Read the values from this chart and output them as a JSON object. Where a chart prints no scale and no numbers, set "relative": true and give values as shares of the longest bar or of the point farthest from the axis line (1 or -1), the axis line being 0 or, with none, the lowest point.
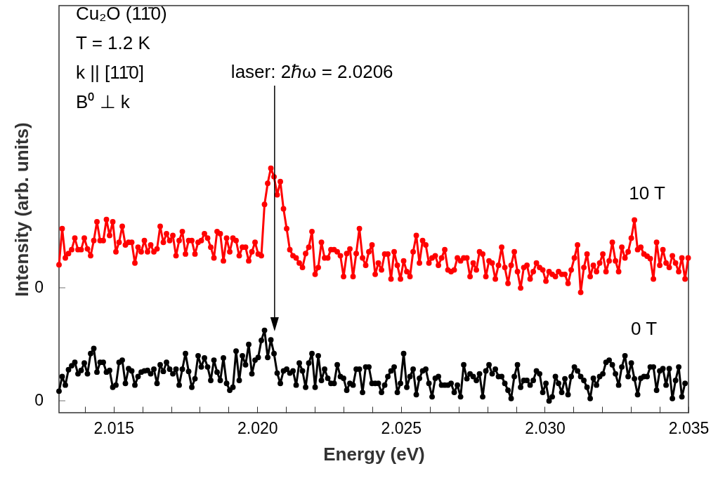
{
  "chart_data": {
    "type": "line",
    "xlabel": "Energy (eV)",
    "ylabel": "Intensity (arb. units)",
    "marker": "circle",
    "relative": true,
    "annotations": [
      "Cu₂O (11̄0)",
      "T = 1.2 K",
      "k || [11̄0]",
      "B⁰ ⊥ k",
      "0",
      "0"
    ],
    "ref_lines": [
      {
        "axis": "x",
        "value": 2.0206,
        "label": "laser: 2ℏω = 2.0206",
        "color": "#000000"
      }
    ],
    "xlim": [
      2.0131,
      2.035
    ],
    "xticks": [
      {
        "value": 2.014,
        "label": null
      },
      2.015,
      {
        "value": 2.016,
        "label": null
      },
      {
        "value": 2.017,
        "label": null
      },
      {
        "value": 2.018,
        "label": null
      },
      {
        "value": 2.019,
        "label": null
      },
      {
        "value": 2.02,
        "label": "2.020"
      },
      {
        "value": 2.021,
        "label": null
      },
      {
        "value": 2.022,
        "label": null
      },
      {
        "value": 2.023,
        "label": null
      },
      {
        "value": 2.024,
        "label": null
      },
      2.025,
      {
        "value": 2.026,
        "label": null
      },
      {
        "value": 2.027,
        "label": null
      },
      {
        "value": 2.028,
        "label": null
      },
      {
        "value": 2.029,
        "label": null
      },
      {
        "value": 2.03,
        "label": "2.030"
      },
      {
        "value": 2.031,
        "label": null
      },
      {
        "value": 2.032,
        "label": null
      },
      {
        "value": 2.033,
        "label": null
      },
      {
        "value": 2.034,
        "label": null
      },
      2.035
    ],
    "x": [
      2.0131,
      2.01321,
      2.01332,
      2.01343,
      2.01354,
      2.01365,
      2.01376,
      2.01387,
      2.01398,
      2.01409,
      2.0142,
      2.01431,
      2.01442,
      2.01453,
      2.01464,
      2.01475,
      2.01486,
      2.01497,
      2.01508,
      2.01519,
      2.0153,
      2.01541,
      2.01552,
      2.01563,
      2.01574,
      2.01585,
      2.01596,
      2.01607,
      2.01618,
      2.01629,
      2.0164,
      2.01651,
      2.01662,
      2.01673,
      2.01684,
      2.01695,
      2.01706,
      2.01717,
      2.01728,
      2.01739,
      2.0175,
      2.01761,
      2.01772,
      2.01783,
      2.01794,
      2.01805,
      2.01816,
      2.01827,
      2.01838,
      2.01849,
      2.0186,
      2.01871,
      2.01882,
      2.01893,
      2.01904,
      2.01915,
      2.01926,
      2.01937,
      2.01948,
      2.01959,
      2.0197,
      2.01981,
      2.01992,
      2.02003,
      2.02014,
      2.02025,
      2.02036,
      2.02047,
      2.02058,
      2.02069,
      2.0208,
      2.02091,
      2.02102,
      2.02113,
      2.02124,
      2.02135,
      2.02146,
      2.02157,
      2.02168,
      2.02179,
      2.0219,
      2.02201,
      2.02212,
      2.02223,
      2.02234,
      2.02245,
      2.02256,
      2.02267,
      2.02278,
      2.02289,
      2.023,
      2.02311,
      2.02322,
      2.02333,
      2.02344,
      2.02355,
      2.02366,
      2.02377,
      2.02388,
      2.02399,
      2.0241,
      2.02421,
      2.02432,
      2.02443,
      2.02454,
      2.02465,
      2.02476,
      2.02487,
      2.02498,
      2.02509,
      2.0252,
      2.02531,
      2.02542,
      2.02553,
      2.02564,
      2.02575,
      2.02586,
      2.02597,
      2.02608,
      2.02619,
      2.0263,
      2.02641,
      2.02652,
      2.02663,
      2.02674,
      2.02685,
      2.02696,
      2.02707,
      2.02718,
      2.02729,
      2.0274,
      2.02751,
      2.02762,
      2.02773,
      2.02784,
      2.02795,
      2.02806,
      2.02817,
      2.02828,
      2.02839,
      2.0285,
      2.02861,
      2.02872,
      2.02883,
      2.02894,
      2.02905,
      2.02916,
      2.02927,
      2.02938,
      2.02949,
      2.0296,
      2.02971,
      2.02982,
      2.02993,
      2.03004,
      2.03015,
      2.03026,
      2.03037,
      2.03048,
      2.03059,
      2.0307,
      2.03081,
      2.03092,
      2.03103,
      2.03114,
      2.03125,
      2.03136,
      2.03147,
      2.03158,
      2.03169,
      2.0318,
      2.03191,
      2.03202,
      2.03213,
      2.03224,
      2.03235,
      2.03246,
      2.03257,
      2.03268,
      2.03279,
      2.0329,
      2.03301,
      2.03312,
      2.03323,
      2.03334,
      2.03345,
      2.03356,
      2.03367,
      2.03378,
      2.03389,
      2.034,
      2.03411,
      2.03422,
      2.03433,
      2.03444,
      2.03455,
      2.03466,
      2.03477,
      2.03488,
      2.03499
    ],
    "series": [
      {
        "name": "10 T",
        "color": "#ff0000",
        "values": [
          0.605,
          0.753,
          0.633,
          0.651,
          0.667,
          0.714,
          0.667,
          0.667,
          0.714,
          0.67,
          0.642,
          0.704,
          0.781,
          0.704,
          0.704,
          0.79,
          0.725,
          0.781,
          0.658,
          0.697,
          0.762,
          0.686,
          0.697,
          0.697,
          0.612,
          0.677,
          0.658,
          0.704,
          0.658,
          0.686,
          0.658,
          0.67,
          0.762,
          0.697,
          0.732,
          0.704,
          0.725,
          0.642,
          0.704,
          0.741,
          0.649,
          0.704,
          0.704,
          0.649,
          0.697,
          0.704,
          0.732,
          0.714,
          0.677,
          0.633,
          0.741,
          0.732,
          0.621,
          0.714,
          0.658,
          0.714,
          0.704,
          0.642,
          0.677,
          0.677,
          0.621,
          0.658,
          0.697,
          0.649,
          0.642,
          0.852,
          0.938,
          1,
          0.965,
          0.891,
          0.945,
          0.834,
          0.753,
          0.667,
          0.642,
          0.633,
          0.612,
          0.594,
          0.651,
          0.677,
          0.741,
          0.566,
          0.594,
          0.697,
          0.633,
          0.633,
          0.667,
          0.667,
          0.658,
          0.642,
          0.557,
          0.651,
          0.67,
          0.557,
          0.651,
          0.753,
          0.633,
          0.603,
          0.658,
          0.686,
          0.566,
          0.612,
          0.584,
          0.649,
          0.649,
          0.547,
          0.658,
          0.603,
          0.547,
          0.621,
          0.577,
          0.557,
          0.658,
          0.725,
          0.612,
          0.704,
          0.686,
          0.612,
          0.633,
          0.642,
          0.603,
          0.633,
          0.667,
          0.584,
          0.577,
          0.584,
          0.633,
          0.621,
          0.633,
          0.633,
          0.557,
          0.612,
          0.584,
          0.658,
          0.649,
          0.557,
          0.621,
          0.612,
          0.547,
          0.603,
          0.677,
          0.594,
          0.529,
          0.603,
          0.658,
          0.577,
          0.51,
          0.594,
          0.603,
          0.547,
          0.577,
          0.612,
          0.594,
          0.584,
          0.538,
          0.577,
          0.566,
          0.557,
          0.577,
          0.566,
          0.566,
          0.529,
          0.584,
          0.633,
          0.686,
          0.492,
          0.594,
          0.649,
          0.557,
          0.603,
          0.577,
          0.612,
          0.649,
          0.577,
          0.621,
          0.697,
          0.621,
          0.577,
          0.677,
          0.633,
          0.658,
          0.714,
          0.788,
          0.667,
          0.677,
          0.649,
          0.64,
          0.63,
          0.547,
          0.697,
          0.603,
          0.667,
          0.612,
          0.594,
          0.642,
          0.612,
          0.577,
          0.633,
          0.547,
          0.633
        ]
      },
      {
        "name": "0 T",
        "color": "#000000",
        "x": [
          2.0131,
          2.01321,
          2.01332,
          2.01343,
          2.01354,
          2.01365,
          2.01376,
          2.01387,
          2.01398,
          2.01409,
          2.0142,
          2.01431,
          2.01442,
          2.01453,
          2.01464,
          2.01475,
          2.01486,
          2.01497,
          2.01508,
          2.01519,
          2.0153,
          2.01541,
          2.01552,
          2.01563,
          2.01574,
          2.01585,
          2.01596,
          2.01607,
          2.01618,
          2.01629,
          2.0164,
          2.01651,
          2.01662,
          2.01673,
          2.01684,
          2.01695,
          2.01706,
          2.01717,
          2.01728,
          2.01739,
          2.0175,
          2.01761,
          2.01772,
          2.01783,
          2.01794,
          2.01805,
          2.01816,
          2.01827,
          2.01838,
          2.01849,
          2.0186,
          2.01871,
          2.01882,
          2.01893,
          2.01904,
          2.01915,
          2.01926,
          2.01937,
          2.01948,
          2.01959,
          2.0197,
          2.01981,
          2.01992,
          2.02003,
          2.02014,
          2.02025,
          2.02036,
          2.02047,
          2.02058,
          2.02069,
          2.0208,
          2.02091,
          2.02102,
          2.02113,
          2.02124,
          2.02135,
          2.02146,
          2.02157,
          2.02168,
          2.02179,
          2.0219,
          2.02201,
          2.02212,
          2.02223,
          2.02234,
          2.02245,
          2.02256,
          2.02267,
          2.02278,
          2.02289,
          2.023,
          2.02311,
          2.02322,
          2.02333,
          2.02344,
          2.02355,
          2.02366,
          2.02377,
          2.02388,
          2.02399,
          2.0241,
          2.02421,
          2.02432,
          2.02443,
          2.02454,
          2.02465,
          2.02476,
          2.02487,
          2.02498,
          2.02509,
          2.0252,
          2.02531,
          2.02542,
          2.02553,
          2.02564,
          2.02575,
          2.02586,
          2.02597,
          2.02608,
          2.02619,
          2.0263,
          2.02641,
          2.02652,
          2.02663,
          2.02674,
          2.02685,
          2.02696,
          2.02707,
          2.02718,
          2.02729,
          2.0274,
          2.02751,
          2.02762,
          2.02773,
          2.02784,
          2.02795,
          2.02806,
          2.02817,
          2.02828,
          2.02839,
          2.0285,
          2.02861,
          2.02872,
          2.02883,
          2.02894,
          2.02905,
          2.02916,
          2.02927,
          2.02938,
          2.02949,
          2.0296,
          2.02971,
          2.02982,
          2.02993,
          2.03004,
          2.03015,
          2.03026,
          2.03037,
          2.03048,
          2.03059,
          2.0307,
          2.03081,
          2.03092,
          2.03103,
          2.03114,
          2.03125,
          2.03136,
          2.03147,
          2.03158,
          2.03169,
          2.0318,
          2.03191,
          2.03202,
          2.03213,
          2.03224,
          2.03235,
          2.03246,
          2.03257,
          2.03268,
          2.03279,
          2.0329,
          2.03301,
          2.03312,
          2.03323,
          2.03334,
          2.03345,
          2.03356,
          2.03367,
          2.03378,
          2.03389,
          2.034,
          2.03411,
          2.03422,
          2.03433,
          2.03444,
          2.03455,
          2.03466,
          2.03477,
          2.03488
        ],
        "values": [
          0.088,
          0.148,
          0.113,
          0.176,
          0.192,
          0.206,
          0.159,
          0.173,
          0.203,
          0.159,
          0.242,
          0.263,
          0.166,
          0.206,
          0.206,
          0.166,
          0.173,
          0.104,
          0.113,
          0.206,
          0.215,
          0.12,
          0.18,
          0.171,
          0.113,
          0.148,
          0.166,
          0.171,
          0.173,
          0.159,
          0.178,
          0.12,
          0.196,
          0.169,
          0.206,
          0.178,
          0.159,
          0.178,
          0.113,
          0.178,
          0.242,
          0.169,
          0.104,
          0.139,
          0.233,
          0.187,
          0.224,
          0.187,
          0.132,
          0.215,
          0.166,
          0.132,
          0.224,
          0.12,
          0.092,
          0.104,
          0.252,
          0.132,
          0.233,
          0.196,
          0.279,
          0.159,
          0.215,
          0.226,
          0.296,
          0.337,
          0.226,
          0.298,
          0.242,
          0.162,
          0.12,
          0.171,
          0.178,
          0.162,
          0.171,
          0.113,
          0.203,
          0.171,
          0.104,
          0.203,
          0.242,
          0.104,
          0.233,
          0.132,
          0.178,
          0.141,
          0.12,
          0.12,
          0.196,
          0.148,
          0.141,
          0.092,
          0.12,
          0.113,
          0.178,
          0.178,
          0.083,
          0.187,
          0.187,
          0.12,
          0.12,
          0.12,
          0.083,
          0.113,
          0.148,
          0.171,
          0.187,
          0.083,
          0.12,
          0.242,
          0.104,
          0.148,
          0.178,
          0.074,
          0.141,
          0.171,
          0.178,
          0.12,
          0.065,
          0.141,
          0.148,
          0.113,
          0.113,
          0.113,
          0.12,
          0.083,
          0.113,
          0.065,
          0.196,
          0.139,
          0.159,
          0.148,
          0.132,
          0.159,
          0.065,
          0.171,
          0.196,
          0.159,
          0.178,
          0.148,
          0.148,
          0.12,
          0.092,
          0.058,
          0.148,
          0.196,
          0.104,
          0.132,
          0.132,
          0.113,
          0.132,
          0.171,
          0.159,
          0.083,
          0.12,
          0.048,
          0.065,
          0.148,
          0.12,
          0.083,
          0.139,
          0.074,
          0.148,
          0.187,
          0.171,
          0.148,
          0.132,
          0.104,
          0.058,
          0.141,
          0.113,
          0.148,
          0.159,
          0.206,
          0.215,
          0.196,
          0.159,
          0.113,
          0.187,
          0.233,
          0.148,
          0.203,
          0.139,
          0.074,
          0.141,
          0.148,
          0.148,
          0.187,
          0.187,
          0.092,
          0.171,
          0.18,
          0.113,
          0.18,
          0.058,
          0.132,
          0.187,
          0.065,
          0.12
        ]
      }
    ]
  }
}
